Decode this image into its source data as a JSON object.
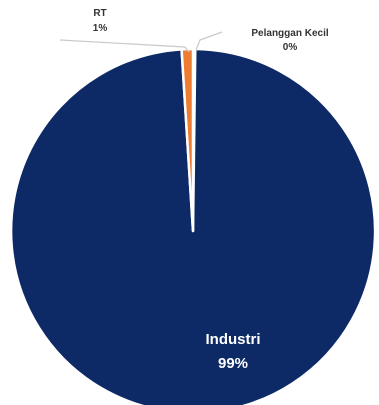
{
  "chart_data": {
    "type": "pie",
    "title": "",
    "slices": [
      {
        "category": "Industri",
        "value": 99,
        "label": "99%",
        "color": "#0d2a66"
      },
      {
        "category": "RT",
        "value": 1,
        "label": "1%",
        "color": "#ed7d31"
      },
      {
        "category": "Pelanggan Kecil",
        "value": 0.2,
        "label": "0%",
        "color": "#a5a5a5"
      }
    ],
    "legend": "none",
    "data_labels": "category and percentage"
  }
}
